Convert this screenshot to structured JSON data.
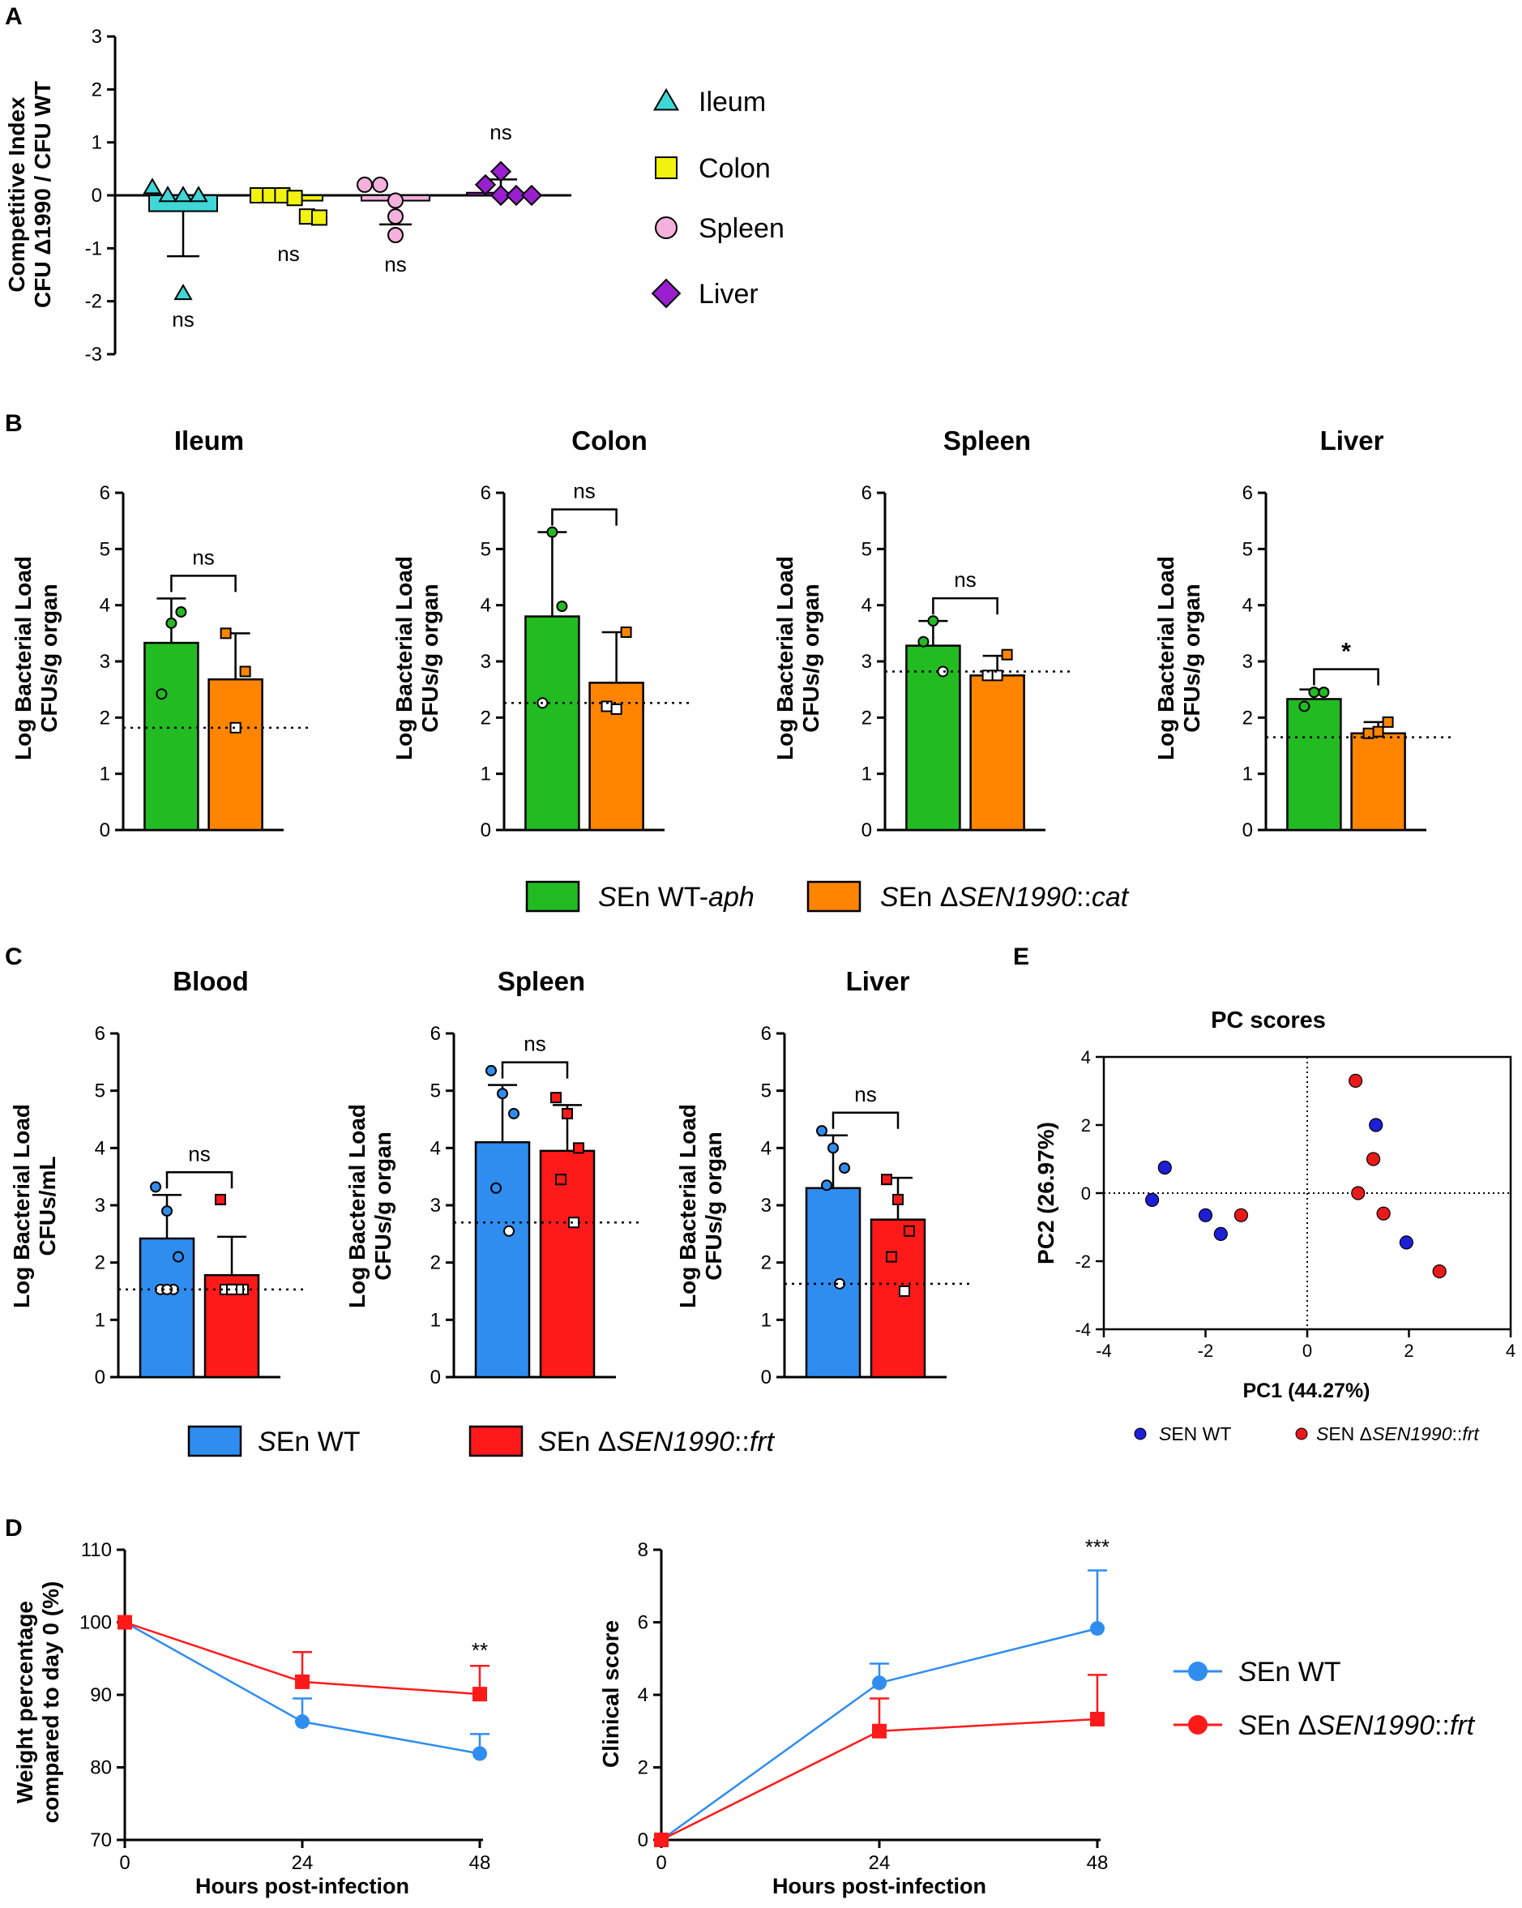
{
  "panels": {
    "A": "A",
    "B": "B",
    "C": "C",
    "D": "D",
    "E": "E"
  },
  "colors": {
    "ileum": "#3ed6d6",
    "colon": "#f2f20f",
    "spleenA": "#f5b0dc",
    "liver": "#9a1fcf",
    "wt_aph": "#22bb22",
    "d_cat": "#ff8500",
    "wt": "#2f8df0",
    "d_frt": "#ff1a1a",
    "pcwt": "#1e1ed6",
    "pcmut": "#e81a1a"
  },
  "chart_data": [
    {
      "id": "A",
      "type": "scatter",
      "ylabel_line1": "Competitive Index",
      "ylabel_line2": "CFU Δ1990 / CFU WT",
      "ylim": [
        -3,
        3
      ],
      "yticks": [
        "3",
        "2",
        "1",
        "0",
        "-1",
        "-2",
        "-3"
      ],
      "groups": [
        {
          "name": "Ileum",
          "bar": -0.3,
          "sd_low": -1.15,
          "points": [
            0.15,
            0.0,
            0.0,
            0.0,
            -1.85
          ],
          "sig": "ns"
        },
        {
          "name": "Colon",
          "bar": -0.1,
          "sd_low": null,
          "points": [
            0.0,
            0.0,
            0.0,
            -0.05,
            -0.4,
            -0.42
          ],
          "sig": "ns"
        },
        {
          "name": "Spleen",
          "bar": -0.1,
          "sd_low": -0.55,
          "points": [
            0.2,
            0.2,
            -0.1,
            -0.4,
            -0.75
          ],
          "sig": "ns"
        },
        {
          "name": "Liver",
          "bar": 0.05,
          "sd_high": 0.3,
          "points": [
            0.45,
            0.2,
            0.0,
            0.0,
            0.0
          ],
          "sig": "ns"
        }
      ],
      "legend": [
        "Ileum",
        "Colon",
        "Spleen",
        "Liver"
      ]
    },
    {
      "id": "B",
      "type": "bar",
      "panel": "B",
      "ylabel_line1": "Log Bacterial Load",
      "ylabel_line2": "CFUs/g organ",
      "ylim": [
        0,
        6
      ],
      "yticks": [
        "0",
        "1",
        "2",
        "3",
        "4",
        "5",
        "6"
      ],
      "subplots": [
        {
          "title": "Ileum",
          "wt": 3.33,
          "wt_sd": 4.12,
          "mut": 2.68,
          "mut_sd": 3.5,
          "lod": 1.82,
          "wt_pts": [
            3.68,
            2.42,
            3.88
          ],
          "mut_pts": [
            1.82,
            3.5,
            2.82
          ],
          "sig": "ns"
        },
        {
          "title": "Colon",
          "wt": 3.8,
          "wt_sd": 5.3,
          "mut": 2.62,
          "mut_sd": 3.52,
          "lod": 2.26,
          "wt_pts": [
            5.3,
            2.26,
            3.98
          ],
          "mut_pts": [
            2.15,
            2.2,
            3.52
          ],
          "sig": "ns"
        },
        {
          "title": "Spleen",
          "wt": 3.28,
          "wt_sd": 3.72,
          "mut": 2.75,
          "mut_sd": 3.1,
          "lod": 2.82,
          "wt_pts": [
            3.72,
            3.35,
            2.82
          ],
          "mut_pts": [
            2.75,
            2.75,
            3.12
          ],
          "sig": "ns"
        },
        {
          "title": "Liver",
          "wt": 2.33,
          "wt_sd": 2.5,
          "mut": 1.72,
          "mut_sd": 1.92,
          "lod": 1.65,
          "wt_pts": [
            2.45,
            2.2,
            2.45
          ],
          "mut_pts": [
            1.75,
            1.72,
            1.92
          ],
          "sig": "*"
        }
      ],
      "legend": {
        "wt_prefix": "S",
        "wt_rest": "En WT-",
        "wt_ital": "aph",
        "mut_prefix": "S",
        "mut_rest": "En Δ",
        "mut_ital": "SEN1990",
        "mut_tail": "::",
        "mut_ital2": "cat"
      }
    },
    {
      "id": "C",
      "type": "bar",
      "panel": "C",
      "ylabel_line1": "Log Bacterial Load",
      "ylim": [
        0,
        6
      ],
      "yticks": [
        "0",
        "1",
        "2",
        "3",
        "4",
        "5",
        "6"
      ],
      "subplots": [
        {
          "title": "Blood",
          "ylabel_line2": "CFUs/mL",
          "wt": 2.42,
          "wt_sd": 3.18,
          "mut": 1.78,
          "mut_sd": 2.45,
          "lod": 1.53,
          "wt_pts": [
            3.32,
            2.9,
            2.1,
            1.53,
            1.53,
            1.53
          ],
          "mut_pts": [
            3.1,
            1.53,
            1.53,
            1.53,
            1.53,
            1.53
          ],
          "sig": "ns"
        },
        {
          "title": "Spleen",
          "ylabel_line2": "CFUs/g organ",
          "wt": 4.1,
          "wt_sd": 5.1,
          "mut": 3.95,
          "mut_sd": 4.75,
          "lod": 2.7,
          "wt_pts": [
            5.35,
            4.95,
            4.6,
            3.3,
            2.55
          ],
          "mut_pts": [
            4.88,
            4.6,
            4.0,
            3.45,
            2.7
          ],
          "sig": "ns"
        },
        {
          "title": "Liver",
          "ylabel_line2": "CFUs/g organ",
          "wt": 3.3,
          "wt_sd": 4.22,
          "mut": 2.75,
          "mut_sd": 3.48,
          "lod": 1.63,
          "wt_pts": [
            4.3,
            4.0,
            3.65,
            3.35,
            1.63
          ],
          "mut_pts": [
            3.45,
            3.1,
            2.55,
            2.1,
            1.5
          ],
          "sig": "ns"
        }
      ],
      "legend": {
        "wt_prefix": "S",
        "wt_rest": "En WT",
        "mut_prefix": "S",
        "mut_rest": "En Δ",
        "mut_ital": "SEN1990",
        "mut_tail": "::",
        "mut_ital2": "frt"
      }
    },
    {
      "id": "E",
      "type": "scatter",
      "title": "PC scores",
      "xlabel": "PC1 (44.27%)",
      "ylabel": "PC2 (26.97%)",
      "xlim": [
        -4,
        4
      ],
      "ylim": [
        -4,
        4
      ],
      "xticks": [
        "-4",
        "-2",
        "0",
        "2",
        "4"
      ],
      "yticks": [
        "4",
        "2",
        "0",
        "-2",
        "-4"
      ],
      "series": [
        {
          "name": "SEN WT",
          "points": [
            [
              -2.8,
              0.75
            ],
            [
              -3.05,
              -0.2
            ],
            [
              -2.0,
              -0.65
            ],
            [
              -1.7,
              -1.2
            ],
            [
              1.35,
              2.0
            ],
            [
              1.95,
              -1.45
            ]
          ]
        },
        {
          "name": "SEN ΔSEN1990::frt",
          "points": [
            [
              -1.3,
              -0.65
            ],
            [
              0.95,
              3.3
            ],
            [
              1.3,
              1.0
            ],
            [
              1.0,
              0.0
            ],
            [
              1.5,
              -0.6
            ],
            [
              2.6,
              -2.3
            ]
          ]
        }
      ],
      "legend": {
        "wt_prefix": "S",
        "wt_rest": "EN WT",
        "mut_prefix": "S",
        "mut_rest": "EN Δ",
        "mut_ital": "SEN1990",
        "mut_tail": "::",
        "mut_ital2": "frt"
      }
    },
    {
      "id": "D1",
      "type": "line",
      "ylabel_line1": "Weight percentage",
      "ylabel_line2": "compared to day 0 (%)",
      "xlabel": "Hours post-infection",
      "x": [
        0,
        24,
        48
      ],
      "xticks": [
        "0",
        "24",
        "48"
      ],
      "ylim": [
        70,
        110
      ],
      "yticks": [
        "110",
        "100",
        "90",
        "80",
        "70"
      ],
      "series": [
        {
          "name": "SEn WT",
          "values": [
            100,
            86.3,
            81.9
          ],
          "sd": [
            0,
            89.5,
            84.6
          ]
        },
        {
          "name": "SEn ΔSEN1990::frt",
          "values": [
            100,
            91.8,
            90.1
          ],
          "sd": [
            0,
            95.9,
            94.0
          ]
        }
      ],
      "annotation": "**"
    },
    {
      "id": "D2",
      "type": "line",
      "ylabel": "Clinical score",
      "xlabel": "Hours post-infection",
      "x": [
        0,
        24,
        48
      ],
      "xticks": [
        "0",
        "24",
        "48"
      ],
      "ylim": [
        0,
        8
      ],
      "yticks": [
        "8",
        "6",
        "4",
        "2",
        "0"
      ],
      "series": [
        {
          "name": "SEn WT",
          "values": [
            0,
            4.33,
            5.83
          ],
          "sd": [
            0,
            4.86,
            7.43
          ]
        },
        {
          "name": "SEn ΔSEN1990::frt",
          "values": [
            0,
            3.0,
            3.33
          ],
          "sd": [
            0,
            3.9,
            4.55
          ]
        }
      ],
      "annotation": "***",
      "legend": {
        "wt_prefix": "S",
        "wt_rest": "En WT",
        "mut_prefix": "S",
        "mut_rest": "En Δ",
        "mut_ital": "SEN1990",
        "mut_tail": "::",
        "mut_ital2": "frt"
      }
    }
  ]
}
